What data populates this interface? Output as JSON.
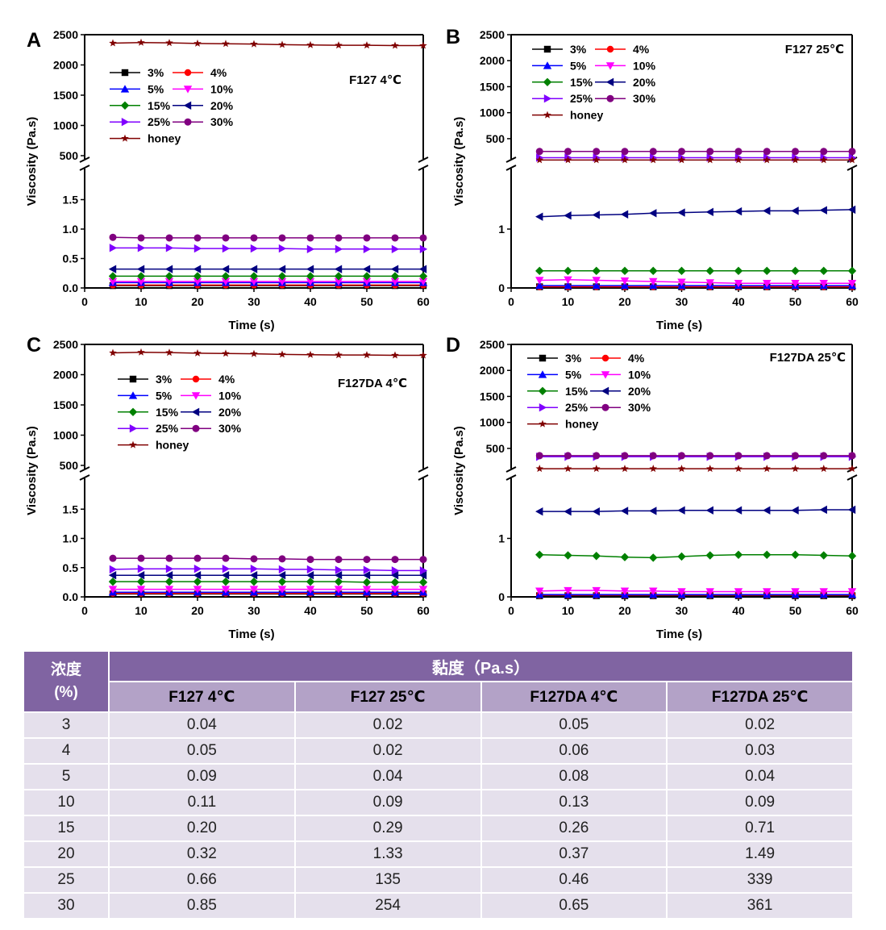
{
  "x_axis": {
    "label": "Time (s)",
    "ticks": [
      0,
      10,
      20,
      30,
      40,
      50,
      60
    ],
    "range": [
      0,
      60
    ]
  },
  "y_axis": {
    "label": "Viscosity (Pa.s)"
  },
  "series_styles": [
    {
      "name": "3%",
      "color": "#000000",
      "marker": "square"
    },
    {
      "name": "4%",
      "color": "#ff0000",
      "marker": "circle"
    },
    {
      "name": "5%",
      "color": "#0000ff",
      "marker": "triangle-up"
    },
    {
      "name": "10%",
      "color": "#ff00ff",
      "marker": "triangle-down"
    },
    {
      "name": "15%",
      "color": "#008000",
      "marker": "diamond"
    },
    {
      "name": "20%",
      "color": "#000080",
      "marker": "triangle-left"
    },
    {
      "name": "25%",
      "color": "#8000ff",
      "marker": "triangle-right"
    },
    {
      "name": "30%",
      "color": "#800080",
      "marker": "hexagon"
    },
    {
      "name": "honey",
      "color": "#800000",
      "marker": "star"
    }
  ],
  "chart_data": [
    {
      "panel": "A",
      "title": "F127 4℃",
      "type": "line",
      "x": [
        5,
        10,
        15,
        20,
        25,
        30,
        35,
        40,
        45,
        50,
        55,
        60
      ],
      "lower_yticks": [
        0.0,
        0.5,
        1.0,
        1.5
      ],
      "lower_ylabels": [
        "0.0",
        "0.5",
        "1.0",
        "1.5"
      ],
      "lower_range": [
        0,
        2.0
      ],
      "upper_yticks": [
        500,
        1000,
        1500,
        2000,
        2500
      ],
      "upper_range": [
        420,
        2500
      ],
      "series": [
        {
          "name": "3%",
          "values": [
            0.04,
            0.04,
            0.04,
            0.04,
            0.04,
            0.04,
            0.04,
            0.04,
            0.04,
            0.04,
            0.04,
            0.04
          ]
        },
        {
          "name": "4%",
          "values": [
            0.05,
            0.05,
            0.05,
            0.05,
            0.05,
            0.05,
            0.05,
            0.05,
            0.05,
            0.05,
            0.05,
            0.05
          ]
        },
        {
          "name": "5%",
          "values": [
            0.09,
            0.09,
            0.09,
            0.09,
            0.09,
            0.09,
            0.09,
            0.09,
            0.09,
            0.09,
            0.09,
            0.09
          ]
        },
        {
          "name": "10%",
          "values": [
            0.11,
            0.11,
            0.11,
            0.11,
            0.11,
            0.11,
            0.11,
            0.11,
            0.11,
            0.11,
            0.11,
            0.11
          ]
        },
        {
          "name": "15%",
          "values": [
            0.2,
            0.2,
            0.2,
            0.2,
            0.2,
            0.2,
            0.2,
            0.2,
            0.2,
            0.2,
            0.2,
            0.2
          ]
        },
        {
          "name": "20%",
          "values": [
            0.32,
            0.32,
            0.32,
            0.32,
            0.32,
            0.32,
            0.32,
            0.32,
            0.32,
            0.32,
            0.32,
            0.32
          ]
        },
        {
          "name": "25%",
          "values": [
            0.68,
            0.68,
            0.68,
            0.67,
            0.67,
            0.67,
            0.67,
            0.66,
            0.66,
            0.66,
            0.66,
            0.66
          ]
        },
        {
          "name": "30%",
          "values": [
            0.86,
            0.85,
            0.85,
            0.85,
            0.85,
            0.85,
            0.85,
            0.85,
            0.85,
            0.85,
            0.85,
            0.85
          ]
        },
        {
          "name": "honey",
          "values": [
            2360,
            2370,
            2365,
            2355,
            2350,
            2345,
            2335,
            2330,
            2325,
            2325,
            2320,
            2320
          ]
        }
      ]
    },
    {
      "panel": "B",
      "title": "F127 25℃",
      "type": "line",
      "x": [
        5,
        10,
        15,
        20,
        25,
        30,
        35,
        40,
        45,
        50,
        55,
        60
      ],
      "lower_yticks": [
        0,
        1
      ],
      "lower_ylabels": [
        "0",
        "1"
      ],
      "lower_range": [
        0,
        2.0
      ],
      "upper_yticks": [
        500,
        1000,
        1500,
        2000,
        2500
      ],
      "upper_range": [
        80,
        2500
      ],
      "series": [
        {
          "name": "3%",
          "values": [
            0.02,
            0.02,
            0.02,
            0.02,
            0.02,
            0.02,
            0.02,
            0.02,
            0.02,
            0.02,
            0.02,
            0.02
          ]
        },
        {
          "name": "4%",
          "values": [
            0.02,
            0.02,
            0.02,
            0.02,
            0.02,
            0.02,
            0.02,
            0.02,
            0.02,
            0.02,
            0.02,
            0.02
          ]
        },
        {
          "name": "5%",
          "values": [
            0.04,
            0.04,
            0.04,
            0.04,
            0.04,
            0.04,
            0.04,
            0.04,
            0.04,
            0.04,
            0.04,
            0.04
          ]
        },
        {
          "name": "10%",
          "values": [
            0.13,
            0.14,
            0.13,
            0.12,
            0.11,
            0.1,
            0.09,
            0.08,
            0.08,
            0.08,
            0.08,
            0.08
          ]
        },
        {
          "name": "15%",
          "values": [
            0.29,
            0.29,
            0.29,
            0.29,
            0.29,
            0.29,
            0.29,
            0.29,
            0.29,
            0.29,
            0.29,
            0.29
          ]
        },
        {
          "name": "20%",
          "values": [
            1.21,
            1.23,
            1.24,
            1.25,
            1.27,
            1.28,
            1.29,
            1.3,
            1.31,
            1.31,
            1.32,
            1.33
          ]
        },
        {
          "name": "25%",
          "values": [
            135,
            135,
            135,
            135,
            135,
            135,
            135,
            135,
            135,
            135,
            135,
            135
          ]
        },
        {
          "name": "30%",
          "values": [
            254,
            254,
            254,
            254,
            254,
            254,
            254,
            254,
            254,
            254,
            254,
            254
          ]
        },
        {
          "name": "honey",
          "values": [
            90,
            90,
            90,
            90,
            90,
            90,
            90,
            90,
            90,
            90,
            90,
            90
          ]
        }
      ]
    },
    {
      "panel": "C",
      "title": "F127DA 4℃",
      "type": "line",
      "x": [
        5,
        10,
        15,
        20,
        25,
        30,
        35,
        40,
        45,
        50,
        55,
        60
      ],
      "lower_yticks": [
        0.0,
        0.5,
        1.0,
        1.5
      ],
      "lower_ylabels": [
        "0.0",
        "0.5",
        "1.0",
        "1.5"
      ],
      "lower_range": [
        0,
        2.0
      ],
      "upper_yticks": [
        500,
        1000,
        1500,
        2000,
        2500
      ],
      "upper_range": [
        420,
        2500
      ],
      "series": [
        {
          "name": "3%",
          "values": [
            0.05,
            0.05,
            0.05,
            0.05,
            0.05,
            0.05,
            0.05,
            0.05,
            0.05,
            0.05,
            0.05,
            0.05
          ]
        },
        {
          "name": "4%",
          "values": [
            0.06,
            0.06,
            0.06,
            0.06,
            0.06,
            0.06,
            0.06,
            0.06,
            0.06,
            0.06,
            0.06,
            0.06
          ]
        },
        {
          "name": "5%",
          "values": [
            0.08,
            0.08,
            0.08,
            0.08,
            0.08,
            0.08,
            0.08,
            0.08,
            0.08,
            0.08,
            0.08,
            0.08
          ]
        },
        {
          "name": "10%",
          "values": [
            0.13,
            0.13,
            0.13,
            0.13,
            0.13,
            0.13,
            0.13,
            0.13,
            0.13,
            0.13,
            0.13,
            0.13
          ]
        },
        {
          "name": "15%",
          "values": [
            0.26,
            0.26,
            0.26,
            0.26,
            0.26,
            0.26,
            0.26,
            0.26,
            0.26,
            0.25,
            0.25,
            0.25
          ]
        },
        {
          "name": "20%",
          "values": [
            0.37,
            0.37,
            0.37,
            0.37,
            0.37,
            0.37,
            0.37,
            0.37,
            0.37,
            0.37,
            0.37,
            0.37
          ]
        },
        {
          "name": "25%",
          "values": [
            0.47,
            0.48,
            0.48,
            0.48,
            0.48,
            0.48,
            0.47,
            0.47,
            0.46,
            0.46,
            0.45,
            0.45
          ]
        },
        {
          "name": "30%",
          "values": [
            0.66,
            0.66,
            0.66,
            0.66,
            0.66,
            0.65,
            0.65,
            0.64,
            0.64,
            0.64,
            0.64,
            0.64
          ]
        },
        {
          "name": "honey",
          "values": [
            2360,
            2370,
            2365,
            2355,
            2350,
            2345,
            2335,
            2330,
            2325,
            2325,
            2320,
            2320
          ]
        }
      ]
    },
    {
      "panel": "D",
      "title": "F127DA 25℃",
      "type": "line",
      "x": [
        5,
        10,
        15,
        20,
        25,
        30,
        35,
        40,
        45,
        50,
        55,
        60
      ],
      "lower_yticks": [
        0,
        1
      ],
      "lower_ylabels": [
        "0",
        "1"
      ],
      "lower_range": [
        0,
        2.0
      ],
      "upper_yticks": [
        500,
        1000,
        1500,
        2000,
        2500
      ],
      "upper_range": [
        80,
        2500
      ],
      "series": [
        {
          "name": "3%",
          "values": [
            0.02,
            0.02,
            0.02,
            0.02,
            0.02,
            0.02,
            0.02,
            0.02,
            0.02,
            0.02,
            0.02,
            0.02
          ]
        },
        {
          "name": "4%",
          "values": [
            0.03,
            0.03,
            0.03,
            0.03,
            0.03,
            0.03,
            0.03,
            0.03,
            0.03,
            0.03,
            0.03,
            0.03
          ]
        },
        {
          "name": "5%",
          "values": [
            0.04,
            0.04,
            0.04,
            0.04,
            0.04,
            0.04,
            0.04,
            0.04,
            0.04,
            0.04,
            0.04,
            0.04
          ]
        },
        {
          "name": "10%",
          "values": [
            0.1,
            0.11,
            0.11,
            0.1,
            0.1,
            0.09,
            0.09,
            0.09,
            0.09,
            0.09,
            0.09,
            0.09
          ]
        },
        {
          "name": "15%",
          "values": [
            0.72,
            0.71,
            0.7,
            0.68,
            0.67,
            0.69,
            0.71,
            0.72,
            0.72,
            0.72,
            0.71,
            0.7
          ]
        },
        {
          "name": "20%",
          "values": [
            1.46,
            1.46,
            1.46,
            1.47,
            1.47,
            1.48,
            1.48,
            1.48,
            1.48,
            1.48,
            1.49,
            1.49
          ]
        },
        {
          "name": "25%",
          "values": [
            339,
            339,
            339,
            339,
            339,
            339,
            339,
            339,
            339,
            339,
            339,
            339
          ]
        },
        {
          "name": "30%",
          "values": [
            361,
            361,
            361,
            361,
            361,
            361,
            361,
            361,
            361,
            361,
            361,
            361
          ]
        },
        {
          "name": "honey",
          "values": [
            110,
            110,
            110,
            110,
            110,
            110,
            110,
            110,
            110,
            110,
            110,
            110
          ]
        }
      ]
    }
  ],
  "table": {
    "conc_header_line1": "浓度",
    "conc_header_line2": "(%)",
    "viscosity_header": "黏度（Pa.s）",
    "columns": [
      "F127 4℃",
      "F127 25℃",
      "F127DA 4℃",
      "F127DA 25℃"
    ],
    "rows": [
      [
        "3",
        "0.04",
        "0.02",
        "0.05",
        "0.02"
      ],
      [
        "4",
        "0.05",
        "0.02",
        "0.06",
        "0.03"
      ],
      [
        "5",
        "0.09",
        "0.04",
        "0.08",
        "0.04"
      ],
      [
        "10",
        "0.11",
        "0.09",
        "0.13",
        "0.09"
      ],
      [
        "15",
        "0.20",
        "0.29",
        "0.26",
        "0.71"
      ],
      [
        "20",
        "0.32",
        "1.33",
        "0.37",
        "1.49"
      ],
      [
        "25",
        "0.66",
        "135",
        "0.46",
        "339"
      ],
      [
        "30",
        "0.85",
        "254",
        "0.65",
        "361"
      ]
    ]
  }
}
